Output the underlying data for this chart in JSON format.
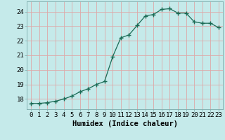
{
  "x": [
    0,
    1,
    2,
    3,
    4,
    5,
    6,
    7,
    8,
    9,
    10,
    11,
    12,
    13,
    14,
    15,
    16,
    17,
    18,
    19,
    20,
    21,
    22,
    23
  ],
  "y": [
    17.7,
    17.7,
    17.75,
    17.85,
    18.0,
    18.2,
    18.5,
    18.7,
    19.0,
    19.2,
    20.9,
    22.2,
    22.4,
    23.05,
    23.7,
    23.8,
    24.15,
    24.2,
    23.9,
    23.9,
    23.3,
    23.2,
    23.2,
    22.9
  ],
  "line_color": "#1a6b55",
  "marker_color": "#1a6b55",
  "bg_color": "#c5eaea",
  "grid_color": "#dea8a8",
  "xlabel": "Humidex (Indice chaleur)",
  "ylabel_ticks": [
    18,
    19,
    20,
    21,
    22,
    23,
    24
  ],
  "ylim": [
    17.3,
    24.7
  ],
  "xlim": [
    -0.5,
    23.5
  ],
  "xtick_labels": [
    "0",
    "1",
    "2",
    "3",
    "4",
    "5",
    "6",
    "7",
    "8",
    "9",
    "10",
    "11",
    "12",
    "13",
    "14",
    "15",
    "16",
    "17",
    "18",
    "19",
    "20",
    "21",
    "22",
    "23"
  ],
  "xlabel_fontsize": 7.5,
  "tick_fontsize": 6.5,
  "marker_size": 3,
  "linewidth": 0.9
}
